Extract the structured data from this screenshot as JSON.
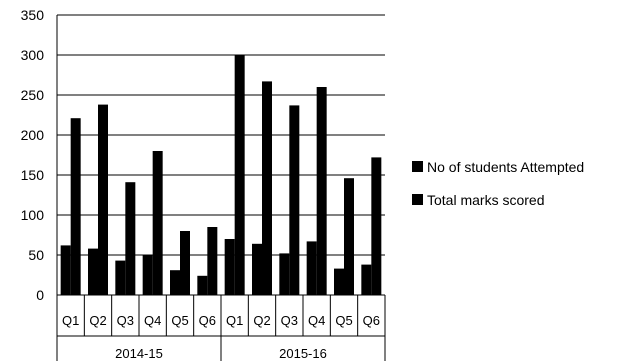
{
  "chart_data": {
    "type": "bar",
    "title": "",
    "xlabel": "",
    "ylabel": "",
    "ylim": [
      0,
      350
    ],
    "yticks": [
      "0",
      "50",
      "100",
      "150",
      "200",
      "250",
      "300",
      "350"
    ],
    "grid": true,
    "legend_position": "right",
    "groups": [
      {
        "label": "2014-15",
        "categories": [
          "Q1",
          "Q2",
          "Q3",
          "Q4",
          "Q5",
          "Q6"
        ]
      },
      {
        "label": "2015-16",
        "categories": [
          "Q1",
          "Q2",
          "Q3",
          "Q4",
          "Q5",
          "Q6"
        ]
      }
    ],
    "series": [
      {
        "name": "No of students Attempted",
        "color": "#000000",
        "values": [
          62,
          58,
          43,
          50,
          31,
          24,
          70,
          64,
          52,
          67,
          33,
          38
        ]
      },
      {
        "name": "Total marks scored",
        "color": "#000000",
        "values": [
          221,
          238,
          141,
          180,
          80,
          85,
          300,
          267,
          237,
          260,
          146,
          172
        ]
      }
    ]
  }
}
